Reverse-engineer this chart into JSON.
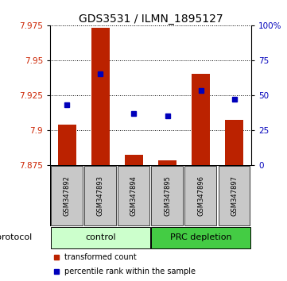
{
  "title": "GDS3531 / ILMN_1895127",
  "samples": [
    "GSM347892",
    "GSM347893",
    "GSM347894",
    "GSM347895",
    "GSM347896",
    "GSM347897"
  ],
  "transformed_counts": [
    7.904,
    7.973,
    7.882,
    7.878,
    7.94,
    7.907
  ],
  "percentile_ranks": [
    43,
    65,
    37,
    35,
    53,
    47
  ],
  "baseline": 7.875,
  "ylim_left": [
    7.875,
    7.975
  ],
  "ylim_right": [
    0,
    100
  ],
  "yticks_left": [
    7.875,
    7.9,
    7.925,
    7.95,
    7.975
  ],
  "yticks_right": [
    0,
    25,
    50,
    75,
    100
  ],
  "ytick_labels_right": [
    "0",
    "25",
    "50",
    "75",
    "100%"
  ],
  "bar_color": "#BB2200",
  "dot_color": "#0000BB",
  "bar_width": 0.55,
  "bg_color": "#ffffff",
  "sample_bg_color": "#C8C8C8",
  "control_color": "#CCFFCC",
  "prc_color": "#44CC44",
  "legend_items": [
    {
      "color": "#BB2200",
      "label": "transformed count"
    },
    {
      "color": "#0000BB",
      "label": "percentile rank within the sample"
    }
  ]
}
